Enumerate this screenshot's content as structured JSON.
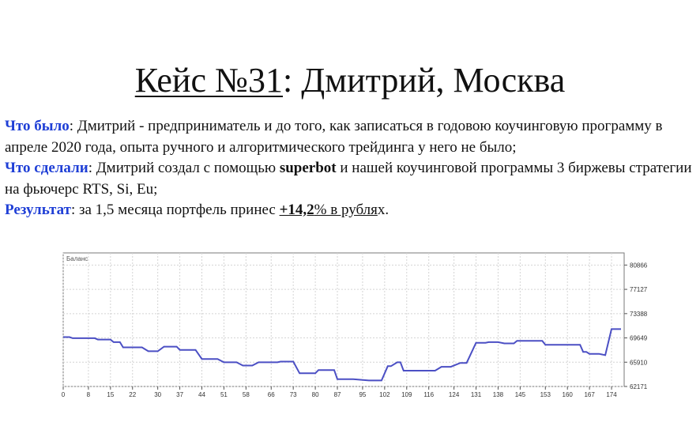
{
  "title": {
    "case_label": "Кейс №31",
    "rest": ": Дмитрий, Москва"
  },
  "paragraphs": {
    "before_label": "Что было",
    "before_text": ": Дмитрий - предприниматель и до того, как записаться в годовою коучинговую программу в апреле 2020 года, опыта ручного и алгоритмического трейдинга у него не было;",
    "done_label": "Что сделали",
    "done_text_1": ": Дмитрий создал с помощью ",
    "done_bold": "superbot",
    "done_text_2": " и нашей коучинговой программы 3 биржевы стратегии на фьючерс RTS, Si, Eu;",
    "result_label": "Результат",
    "result_text_1": ": за 1,5 месяца портфель принес ",
    "result_bold": "+14,2",
    "result_ul": "% в рубля",
    "result_tail": "х."
  },
  "chart_data": {
    "type": "line",
    "title": "Баланс",
    "series_color": "#4b4fc4",
    "grid": true,
    "xlim": [
      0,
      178
    ],
    "ylim": [
      62171,
      82735
    ],
    "x_ticks": [
      "0",
      "8",
      "15",
      "22",
      "30",
      "37",
      "44",
      "51",
      "58",
      "66",
      "73",
      "80",
      "87",
      "95",
      "102",
      "109",
      "116",
      "124",
      "131",
      "138",
      "145",
      "153",
      "160",
      "167",
      "174"
    ],
    "y_ticks": [
      "80866",
      "77127",
      "73388",
      "69649",
      "65910",
      "62171"
    ],
    "x": [
      0,
      2,
      3,
      10,
      11,
      15,
      16,
      18,
      19,
      25,
      27,
      30,
      32,
      36,
      37,
      42,
      44,
      49,
      51,
      55,
      57,
      60,
      62,
      68,
      69,
      73,
      75,
      80,
      81,
      86,
      87,
      92,
      97,
      101,
      103,
      104,
      106,
      107,
      108,
      110,
      112,
      118,
      120,
      123,
      126,
      128,
      131,
      134,
      135,
      138,
      140,
      143,
      144,
      147,
      148,
      152,
      153,
      157,
      158,
      161,
      162,
      164,
      165,
      166,
      167,
      168,
      170,
      172,
      174,
      175,
      176,
      177
    ],
    "y": [
      69780,
      69780,
      69600,
      69600,
      69400,
      69400,
      69000,
      69000,
      68200,
      68200,
      67600,
      67600,
      68300,
      68300,
      67800,
      67800,
      66400,
      66400,
      65900,
      65900,
      65400,
      65400,
      65900,
      65900,
      66000,
      66000,
      64200,
      64200,
      64700,
      64700,
      63300,
      63300,
      63100,
      63100,
      65300,
      65300,
      65900,
      65900,
      64600,
      64600,
      64600,
      64600,
      65200,
      65200,
      65800,
      65800,
      68900,
      68900,
      69000,
      69000,
      68800,
      68800,
      69200,
      69200,
      69200,
      69200,
      68600,
      68600,
      68600,
      68600,
      68600,
      68600,
      67500,
      67500,
      67200,
      67200,
      67200,
      67000,
      71000,
      71000,
      71000,
      71000
    ],
    "note": "series approximated from the visible balance curve"
  }
}
